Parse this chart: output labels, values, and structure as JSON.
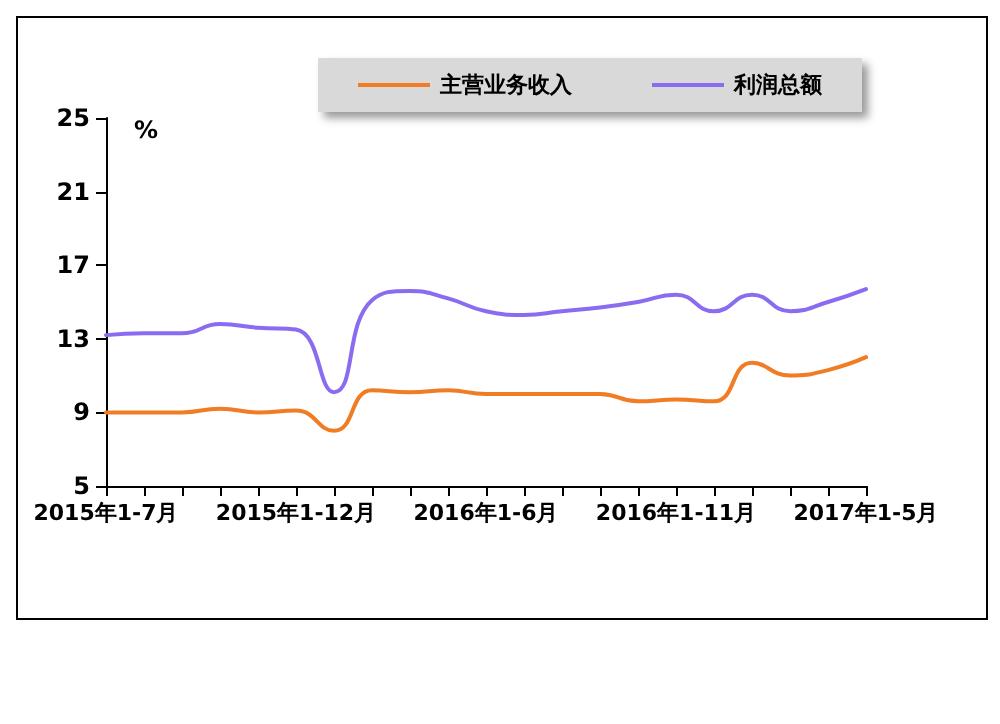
{
  "chart_data": {
    "type": "line",
    "categories": [
      "2015年1-7月",
      null,
      null,
      null,
      null,
      "2015年1-12月",
      null,
      null,
      null,
      null,
      "2016年1-6月",
      null,
      null,
      null,
      null,
      "2016年1-11月",
      null,
      null,
      null,
      null,
      "2017年1-5月"
    ],
    "series": [
      {
        "name": "主营业务收入",
        "color": "#f07c24",
        "values": [
          9.0,
          9.0,
          9.0,
          9.2,
          9.0,
          9.1,
          8.0,
          10.2,
          10.1,
          10.2,
          10.0,
          10.0,
          10.0,
          10.0,
          9.6,
          9.7,
          9.6,
          11.7,
          11.0,
          11.3,
          12.0
        ]
      },
      {
        "name": "利润总额",
        "color": "#8b6cf0",
        "values": [
          13.2,
          13.3,
          13.3,
          13.8,
          13.6,
          13.5,
          10.1,
          15.1,
          15.6,
          15.2,
          14.5,
          14.3,
          14.5,
          14.7,
          15.0,
          15.4,
          14.5,
          15.4,
          14.5,
          15.0,
          15.7
        ]
      }
    ],
    "ylabel": "%",
    "ylim": [
      5,
      25
    ],
    "yticks": [
      5,
      9,
      13,
      17,
      21,
      25
    ],
    "grid": false,
    "legend": "top",
    "marker": "none",
    "line_style": "solid"
  }
}
